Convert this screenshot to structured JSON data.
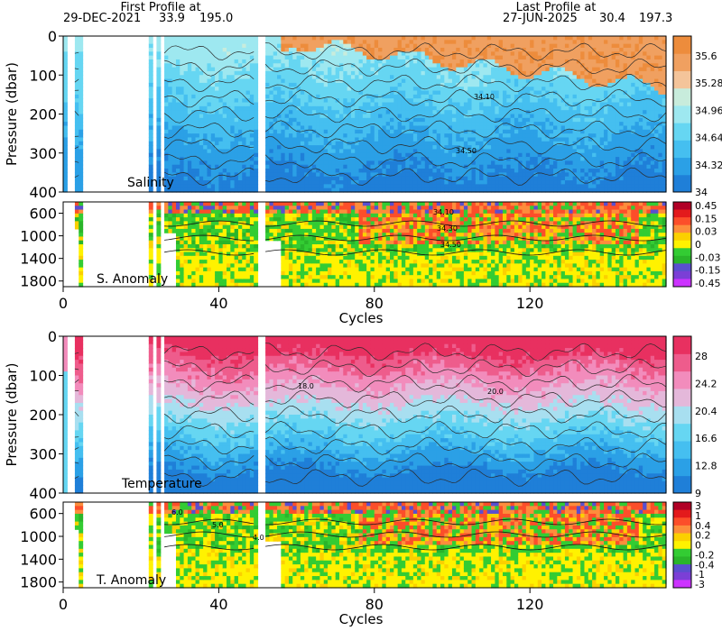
{
  "header": {
    "first_label": "First Profile at",
    "first_date": "29-DEC-2021",
    "first_lat": "33.9",
    "first_lon": "195.0",
    "last_label": "Last Profile at",
    "last_date": "27-JUN-2025",
    "last_lat": "30.4",
    "last_lon": "197.3"
  },
  "chart_data": [
    {
      "type": "heatmap",
      "panel_label": "Salinity",
      "ylabel": "Pressure (dbar)",
      "xlim": [
        0,
        155
      ],
      "ylim": [
        400,
        0
      ],
      "yticks": [
        "0",
        "100",
        "200",
        "300",
        "400"
      ],
      "colorbar_ticks": [
        "35.6",
        "35.28",
        "34.96",
        "34.64",
        "34.32",
        "34"
      ],
      "colorbar_range": [
        34.0,
        35.8
      ],
      "colors": [
        "#1f7fd8",
        "#2ba0e6",
        "#45bff0",
        "#66d6f2",
        "#9ee8f0",
        "#c8ecdc",
        "#f4c49a",
        "#f0a060",
        "#ed8c3c"
      ],
      "contour_labels": [
        "34.50",
        "34.10"
      ]
    },
    {
      "type": "heatmap",
      "panel_label": "S. Anomaly",
      "ylim": [
        1900,
        400
      ],
      "yticks": [
        "600",
        "1000",
        "1400",
        "1800"
      ],
      "colorbar_ticks": [
        "0.45",
        "0.15",
        "0.03",
        "0",
        "-0.03",
        "-0.15",
        "-0.45"
      ],
      "colors": [
        "#b10026",
        "#e31a1c",
        "#fc4e2a",
        "#fd8d3c",
        "#fbd000",
        "#fff200",
        "#33cc33",
        "#2ab52a",
        "#5a4fcf",
        "#7b3fd6",
        "#cc33ff"
      ],
      "contour_labels": [
        "34.10",
        "34.30",
        "34.50"
      ],
      "xlabel": "Cycles",
      "xticks": [
        "0",
        "40",
        "80",
        "120"
      ]
    },
    {
      "type": "heatmap",
      "panel_label": "Temperature",
      "ylabel": "Pressure (dbar)",
      "ylim": [
        400,
        0
      ],
      "yticks": [
        "0",
        "100",
        "200",
        "300",
        "400"
      ],
      "colorbar_ticks": [
        "28",
        "24.2",
        "20.4",
        "16.6",
        "12.8",
        "9"
      ],
      "colorbar_range": [
        9,
        28
      ],
      "colors": [
        "#1f7fd8",
        "#2ba0e6",
        "#45bff0",
        "#66d6f2",
        "#a8dff0",
        "#e4b8da",
        "#f28cbc",
        "#ee5c8c",
        "#e83060"
      ],
      "contour_labels": [
        "18.0",
        "20.0"
      ]
    },
    {
      "type": "heatmap",
      "panel_label": "T. Anomaly",
      "ylim": [
        1900,
        400
      ],
      "yticks": [
        "600",
        "1000",
        "1400",
        "1800"
      ],
      "colorbar_ticks": [
        "3",
        "1",
        "0.4",
        "0.2",
        "0",
        "-0.2",
        "-0.4",
        "-1",
        "-3"
      ],
      "colors": [
        "#b10026",
        "#e31a1c",
        "#fc4e2a",
        "#fd8d3c",
        "#fbd000",
        "#fff200",
        "#33cc33",
        "#2ab52a",
        "#5a4fcf",
        "#7b3fd6",
        "#cc33ff"
      ],
      "contour_labels": [
        "6.0",
        "5.0",
        "4.0"
      ],
      "xlabel": "Cycles",
      "xticks": [
        "0",
        "40",
        "80",
        "120"
      ]
    }
  ]
}
